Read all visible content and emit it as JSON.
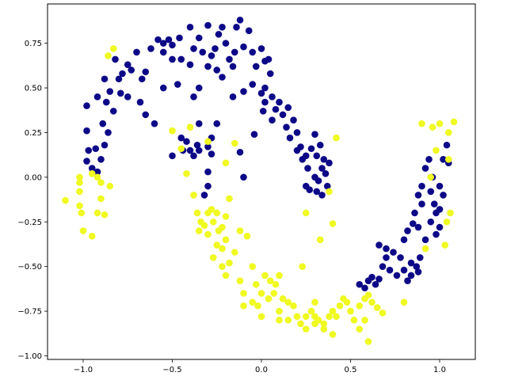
{
  "chart_data": {
    "type": "scatter",
    "title": "",
    "xlabel": "",
    "ylabel": "",
    "xlim": [
      -1.2,
      1.2
    ],
    "ylim": [
      -1.02,
      0.97
    ],
    "grid": false,
    "x_ticks": [
      -1.0,
      -0.5,
      0.0,
      0.5,
      1.0
    ],
    "x_tick_labels": [
      "−1.0",
      "−0.5",
      "0.0",
      "0.5",
      "1.0"
    ],
    "y_ticks": [
      -1.0,
      -0.75,
      -0.5,
      -0.25,
      0.0,
      0.25,
      0.5,
      0.75
    ],
    "y_tick_labels": [
      "−1.00",
      "−0.75",
      "−0.50",
      "−0.25",
      "0.00",
      "0.25",
      "0.50",
      "0.75"
    ],
    "series": [
      {
        "color": "#0d0887",
        "points": [
          [
            -0.3,
            0.85
          ],
          [
            -0.4,
            0.84
          ],
          [
            -0.46,
            0.78
          ],
          [
            -0.52,
            0.77
          ],
          [
            -0.62,
            0.72
          ],
          [
            -0.82,
            0.66
          ],
          [
            -0.88,
            0.55
          ],
          [
            -0.98,
            0.4
          ],
          [
            -0.98,
            0.26
          ],
          [
            -0.97,
            0.15
          ],
          [
            -0.93,
            0.16
          ],
          [
            -0.98,
            0.09
          ],
          [
            -0.95,
            0.05
          ],
          [
            -0.92,
            0.03
          ],
          [
            -0.9,
            0.1
          ],
          [
            -0.88,
            0.18
          ],
          [
            -0.86,
            0.25
          ],
          [
            -0.89,
            0.3
          ],
          [
            -0.87,
            0.42
          ],
          [
            -0.92,
            0.45
          ],
          [
            -0.83,
            0.37
          ],
          [
            -0.85,
            0.48
          ],
          [
            -0.8,
            0.55
          ],
          [
            -0.79,
            0.47
          ],
          [
            -0.78,
            0.58
          ],
          [
            -0.75,
            0.63
          ],
          [
            -0.73,
            0.6
          ],
          [
            -0.7,
            0.7
          ],
          [
            -0.67,
            0.55
          ],
          [
            -0.65,
            0.59
          ],
          [
            -0.68,
            0.42
          ],
          [
            -0.75,
            0.45
          ],
          [
            -0.55,
            0.7
          ],
          [
            -0.58,
            0.77
          ],
          [
            -0.55,
            0.75
          ],
          [
            -0.5,
            0.74
          ],
          [
            -0.5,
            0.66
          ],
          [
            -0.45,
            0.66
          ],
          [
            -0.47,
            0.52
          ],
          [
            -0.4,
            0.63
          ],
          [
            -0.38,
            0.72
          ],
          [
            -0.35,
            0.78
          ],
          [
            -0.33,
            0.7
          ],
          [
            -0.3,
            0.62
          ],
          [
            -0.28,
            0.68
          ],
          [
            -0.26,
            0.72
          ],
          [
            -0.24,
            0.8
          ],
          [
            -0.22,
            0.84
          ],
          [
            -0.2,
            0.75
          ],
          [
            -0.18,
            0.66
          ],
          [
            -0.15,
            0.7
          ],
          [
            -0.14,
            0.84
          ],
          [
            -0.12,
            0.88
          ],
          [
            -0.1,
            0.73
          ],
          [
            -0.07,
            0.82
          ],
          [
            -0.05,
            0.7
          ],
          [
            -0.03,
            0.62
          ],
          [
            0.0,
            0.72
          ],
          [
            0.02,
            0.65
          ],
          [
            0.04,
            0.66
          ],
          [
            -0.22,
            0.56
          ],
          [
            -0.16,
            0.62
          ],
          [
            -0.25,
            0.6
          ],
          [
            -0.1,
            0.48
          ],
          [
            -0.05,
            0.52
          ],
          [
            0.0,
            0.47
          ],
          [
            0.02,
            0.5
          ],
          [
            0.05,
            0.58
          ],
          [
            0.06,
            0.45
          ],
          [
            0.08,
            0.38
          ],
          [
            0.1,
            0.42
          ],
          [
            0.12,
            0.35
          ],
          [
            0.14,
            0.28
          ],
          [
            0.15,
            0.39
          ],
          [
            0.16,
            0.22
          ],
          [
            0.18,
            0.32
          ],
          [
            0.2,
            0.25
          ],
          [
            0.2,
            0.15
          ],
          [
            0.22,
            0.17
          ],
          [
            0.23,
            0.1
          ],
          [
            0.25,
            0.12
          ],
          [
            0.26,
            0.05
          ],
          [
            0.28,
            0.16
          ],
          [
            0.3,
            0.24
          ],
          [
            0.31,
            0.12
          ],
          [
            0.3,
            0.0
          ],
          [
            0.32,
            -0.02
          ],
          [
            0.34,
            0.05
          ],
          [
            0.33,
            0.18
          ],
          [
            0.35,
            0.1
          ],
          [
            0.36,
            0.02
          ],
          [
            0.38,
            0.08
          ],
          [
            0.37,
            -0.05
          ],
          [
            0.31,
            -0.08
          ],
          [
            0.34,
            -0.1
          ],
          [
            0.27,
            -0.07
          ],
          [
            0.25,
            -0.05
          ],
          [
            -0.12,
            0.14
          ],
          [
            -0.1,
            0.0
          ],
          [
            -0.3,
            0.03
          ],
          [
            -0.3,
            -0.05
          ],
          [
            -0.32,
            -0.1
          ],
          [
            -0.28,
            0.13
          ],
          [
            -0.3,
            0.17
          ],
          [
            -0.38,
            0.12
          ],
          [
            -0.28,
            0.22
          ],
          [
            -0.35,
            0.15
          ],
          [
            -0.4,
            0.15
          ],
          [
            -0.42,
            0.2
          ],
          [
            -0.45,
            0.22
          ],
          [
            -0.35,
            0.3
          ],
          [
            -0.25,
            0.3
          ],
          [
            -0.36,
            0.18
          ],
          [
            -0.44,
            0.15
          ],
          [
            -0.5,
            0.12
          ],
          [
            0.01,
            0.37
          ],
          [
            -0.04,
            0.24
          ],
          [
            0.06,
            0.32
          ],
          [
            -0.55,
            0.5
          ],
          [
            -0.6,
            0.3
          ],
          [
            -0.65,
            0.35
          ],
          [
            -0.38,
            0.45
          ],
          [
            -0.16,
            0.45
          ],
          [
            -0.35,
            0.5
          ],
          [
            0.02,
            0.42
          ],
          [
            0.55,
            -0.6
          ],
          [
            0.58,
            -0.62
          ],
          [
            0.62,
            -0.56
          ],
          [
            0.64,
            -0.6
          ],
          [
            0.66,
            -0.57
          ],
          [
            0.68,
            -0.5
          ],
          [
            0.66,
            -0.38
          ],
          [
            0.7,
            -0.4
          ],
          [
            0.74,
            -0.42
          ],
          [
            0.78,
            -0.45
          ],
          [
            0.8,
            -0.35
          ],
          [
            0.82,
            -0.3
          ],
          [
            0.85,
            -0.26
          ],
          [
            0.88,
            -0.28
          ],
          [
            0.86,
            -0.2
          ],
          [
            0.9,
            -0.15
          ],
          [
            0.88,
            -0.1
          ],
          [
            0.9,
            -0.05
          ],
          [
            0.92,
            0.05
          ],
          [
            0.94,
            0.1
          ],
          [
            0.96,
            0.0
          ],
          [
            0.95,
            -0.08
          ],
          [
            0.97,
            -0.15
          ],
          [
            0.98,
            -0.2
          ],
          [
            1.0,
            -0.18
          ],
          [
            1.0,
            -0.05
          ],
          [
            1.02,
            0.1
          ],
          [
            1.04,
            0.18
          ],
          [
            1.05,
            0.08
          ],
          [
            1.02,
            -0.1
          ],
          [
            1.0,
            -0.28
          ],
          [
            0.98,
            -0.32
          ],
          [
            0.95,
            -0.25
          ],
          [
            0.92,
            -0.35
          ],
          [
            0.89,
            -0.45
          ],
          [
            0.87,
            -0.5
          ],
          [
            0.84,
            -0.48
          ],
          [
            0.8,
            -0.52
          ],
          [
            0.82,
            -0.58
          ],
          [
            0.84,
            -0.55
          ],
          [
            0.88,
            -0.53
          ],
          [
            0.76,
            -0.55
          ],
          [
            0.72,
            -0.52
          ],
          [
            0.7,
            -0.45
          ],
          [
            0.6,
            -0.58
          ]
        ]
      },
      {
        "color": "#f0f921",
        "points": [
          [
            -0.83,
            0.72
          ],
          [
            -0.86,
            0.68
          ],
          [
            -1.1,
            -0.13
          ],
          [
            -1.02,
            -0.03
          ],
          [
            -1.02,
            -0.08
          ],
          [
            -1.02,
            -0.16
          ],
          [
            -1.01,
            -0.2
          ],
          [
            -1.0,
            -0.3
          ],
          [
            -0.95,
            -0.33
          ],
          [
            -0.92,
            -0.2
          ],
          [
            -0.88,
            -0.21
          ],
          [
            -0.9,
            -0.12
          ],
          [
            -0.9,
            -0.03
          ],
          [
            -0.92,
            0.0
          ],
          [
            -0.95,
            0.02
          ],
          [
            -0.85,
            -0.05
          ],
          [
            -1.02,
            0.0
          ],
          [
            -0.5,
            0.26
          ],
          [
            -0.45,
            0.16
          ],
          [
            -0.4,
            0.28
          ],
          [
            -0.42,
            0.02
          ],
          [
            -0.3,
            0.2
          ],
          [
            -0.2,
            0.08
          ],
          [
            -0.15,
            0.19
          ],
          [
            -0.38,
            -0.1
          ],
          [
            -0.36,
            -0.2
          ],
          [
            -0.34,
            -0.25
          ],
          [
            -0.3,
            -0.2
          ],
          [
            -0.28,
            -0.18
          ],
          [
            -0.25,
            -0.2
          ],
          [
            -0.27,
            -0.25
          ],
          [
            -0.24,
            -0.3
          ],
          [
            -0.22,
            -0.28
          ],
          [
            -0.2,
            -0.22
          ],
          [
            -0.18,
            -0.12
          ],
          [
            -0.2,
            -0.35
          ],
          [
            -0.22,
            -0.4
          ],
          [
            -0.25,
            -0.38
          ],
          [
            -0.3,
            -0.32
          ],
          [
            -0.32,
            -0.27
          ],
          [
            -0.35,
            -0.3
          ],
          [
            -0.27,
            -0.45
          ],
          [
            -0.22,
            -0.5
          ],
          [
            -0.2,
            -0.55
          ],
          [
            -0.18,
            -0.48
          ],
          [
            -0.15,
            -0.42
          ],
          [
            -0.12,
            -0.3
          ],
          [
            -0.08,
            -0.33
          ],
          [
            -0.05,
            -0.5
          ],
          [
            -0.03,
            -0.6
          ],
          [
            0.0,
            -0.65
          ],
          [
            0.02,
            -0.55
          ],
          [
            0.05,
            -0.58
          ],
          [
            0.08,
            -0.6
          ],
          [
            0.1,
            -0.55
          ],
          [
            -0.12,
            -0.58
          ],
          [
            -0.1,
            -0.65
          ],
          [
            -0.05,
            -0.7
          ],
          [
            -0.02,
            -0.72
          ],
          [
            -0.1,
            -0.72
          ],
          [
            0.04,
            -0.68
          ],
          [
            0.07,
            -0.65
          ],
          [
            0.12,
            -0.68
          ],
          [
            0.15,
            -0.7
          ],
          [
            0.18,
            -0.72
          ],
          [
            0.2,
            -0.78
          ],
          [
            0.22,
            -0.82
          ],
          [
            0.25,
            -0.78
          ],
          [
            0.28,
            -0.75
          ],
          [
            0.3,
            -0.78
          ],
          [
            0.32,
            -0.8
          ],
          [
            0.35,
            -0.82
          ],
          [
            0.38,
            -0.78
          ],
          [
            0.4,
            -0.75
          ],
          [
            0.42,
            -0.78
          ],
          [
            0.44,
            -0.72
          ],
          [
            0.46,
            -0.68
          ],
          [
            0.48,
            -0.7
          ],
          [
            0.5,
            -0.75
          ],
          [
            0.52,
            -0.8
          ],
          [
            0.55,
            -0.72
          ],
          [
            0.58,
            -0.68
          ],
          [
            0.6,
            -0.66
          ],
          [
            0.62,
            -0.7
          ],
          [
            0.65,
            -0.73
          ],
          [
            0.68,
            -0.76
          ],
          [
            0.55,
            -0.85
          ],
          [
            0.6,
            -0.92
          ],
          [
            0.58,
            -0.8
          ],
          [
            0.4,
            -0.88
          ],
          [
            0.35,
            -0.85
          ],
          [
            0.3,
            -0.82
          ],
          [
            0.25,
            -0.85
          ],
          [
            0.15,
            -0.8
          ],
          [
            0.1,
            -0.8
          ],
          [
            0.0,
            -0.78
          ],
          [
            0.1,
            -0.75
          ],
          [
            0.3,
            -0.7
          ],
          [
            0.33,
            -0.35
          ],
          [
            0.23,
            -0.5
          ],
          [
            0.4,
            -0.26
          ],
          [
            0.42,
            0.22
          ],
          [
            0.38,
            -0.08
          ],
          [
            0.25,
            -0.2
          ],
          [
            0.8,
            -0.7
          ],
          [
            1.0,
            0.3
          ],
          [
            0.96,
            0.28
          ],
          [
            0.9,
            0.3
          ],
          [
            0.98,
            0.15
          ],
          [
            1.05,
            0.1
          ],
          [
            1.08,
            0.31
          ],
          [
            1.05,
            0.25
          ],
          [
            1.06,
            -0.2
          ],
          [
            1.04,
            -0.25
          ],
          [
            1.03,
            -0.38
          ],
          [
            0.95,
            0.0
          ],
          [
            0.92,
            -0.4
          ]
        ]
      }
    ]
  }
}
